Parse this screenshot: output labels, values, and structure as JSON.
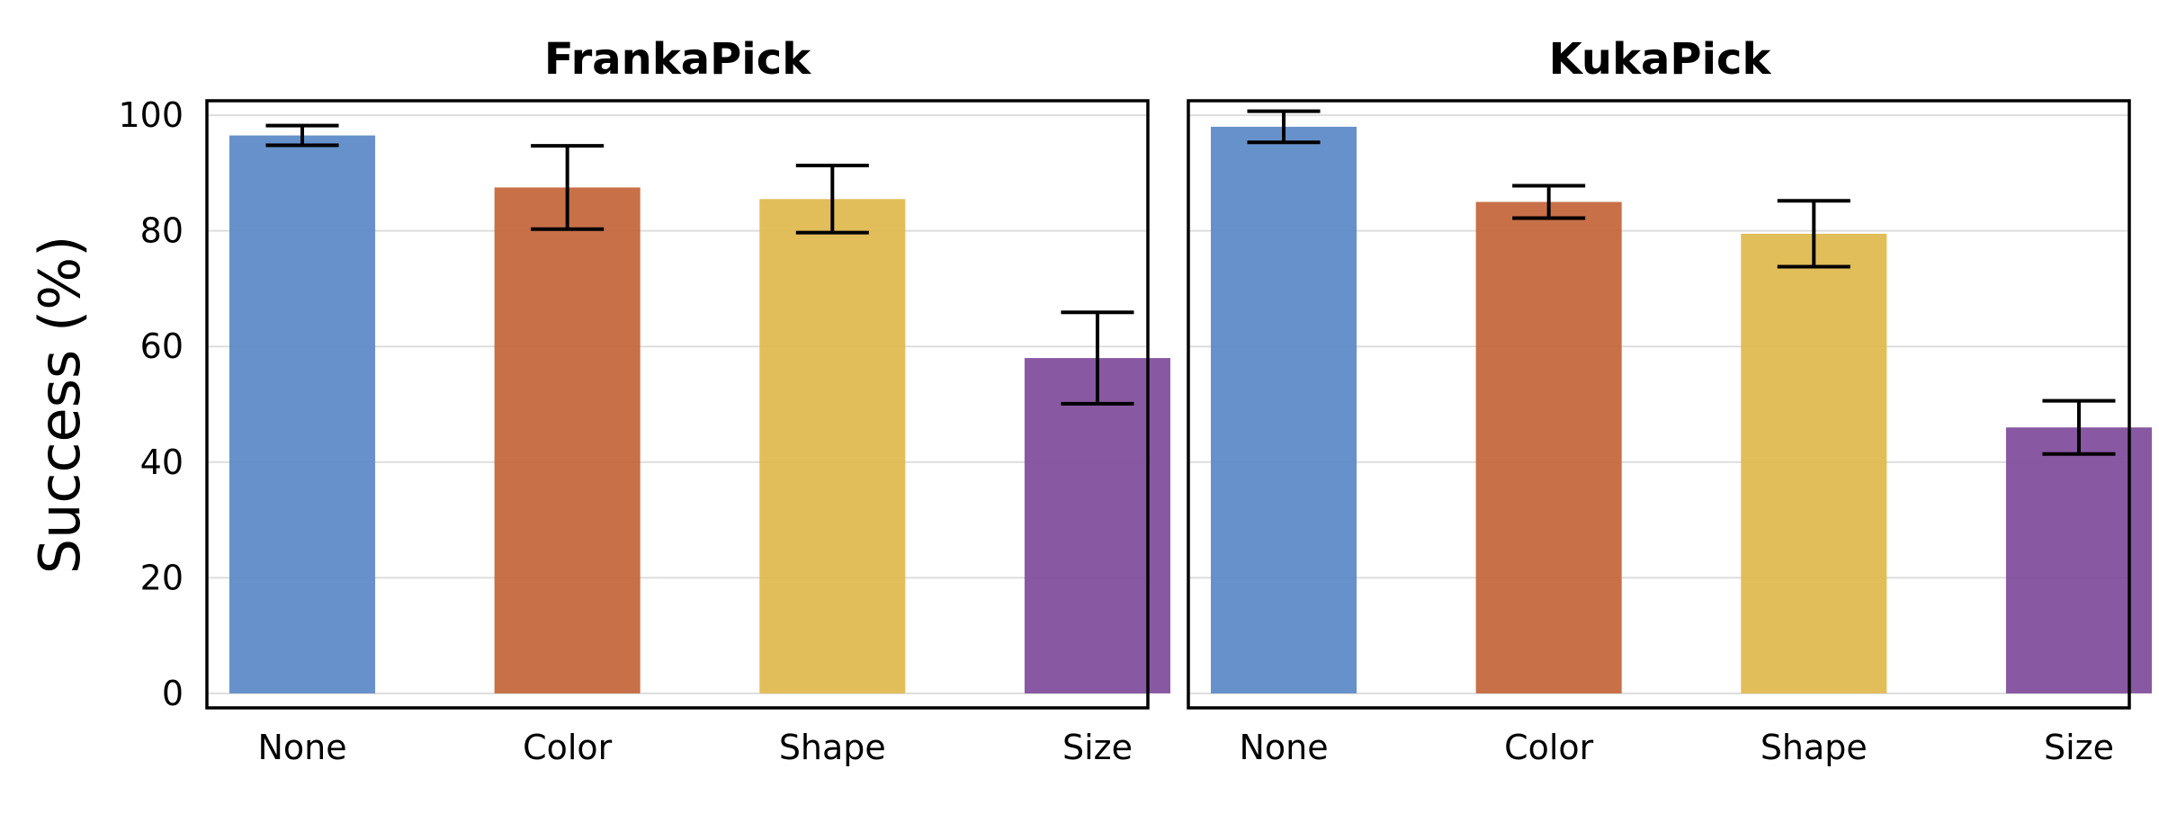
{
  "chart_data": [
    {
      "type": "bar",
      "title": "FrankaPick",
      "xlabel": "",
      "ylabel": "Success (%)",
      "ylim": [
        -2.5,
        102.5
      ],
      "yticks": [
        0,
        20,
        40,
        60,
        80,
        100
      ],
      "grid": "horizontal",
      "categories": [
        "None",
        "Color",
        "Shape",
        "Size"
      ],
      "values": [
        96.5,
        87.5,
        85.5,
        58
      ],
      "errors": [
        1.7,
        7.2,
        5.8,
        7.9
      ],
      "colors": [
        "#5b89c6",
        "#c4653a",
        "#e0b94d",
        "#7f4c9b"
      ]
    },
    {
      "type": "bar",
      "title": "KukaPick",
      "xlabel": "",
      "ylabel": "",
      "ylim": [
        -2.5,
        102.5
      ],
      "yticks": [
        0,
        20,
        40,
        60,
        80,
        100
      ],
      "grid": "horizontal",
      "categories": [
        "None",
        "Color",
        "Shape",
        "Size"
      ],
      "values": [
        98,
        85,
        79.5,
        46
      ],
      "errors": [
        2.7,
        2.8,
        5.7,
        4.6
      ],
      "colors": [
        "#5b89c6",
        "#c4653a",
        "#e0b94d",
        "#7f4c9b"
      ]
    }
  ]
}
